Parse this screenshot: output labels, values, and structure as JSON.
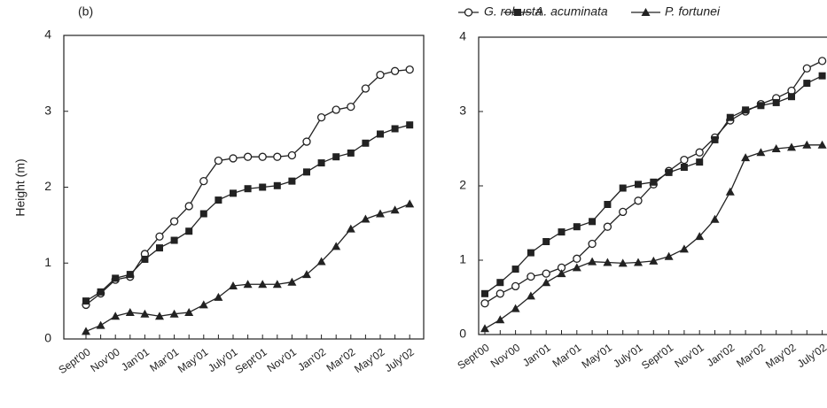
{
  "chart_data": [
    {
      "type": "line",
      "panel_label": "(b)",
      "ylabel": "Height (m)",
      "categories": [
        "Sept'00",
        null,
        "Nov'00",
        null,
        "Jan'01",
        null,
        "Mar'01",
        null,
        "May'01",
        null,
        "July'01",
        null,
        "Sept'01",
        null,
        "Nov'01",
        null,
        "Jan'02",
        null,
        "Mar'02",
        null,
        "May'02",
        null,
        "July'02"
      ],
      "ylim": [
        0,
        4
      ],
      "yticks": [
        0,
        1,
        2,
        3,
        4
      ],
      "series": [
        {
          "name": "G. robusta",
          "color": "#222222",
          "marker": "circle-open",
          "values": [
            0.45,
            0.6,
            0.78,
            0.82,
            1.12,
            1.35,
            1.55,
            1.75,
            2.08,
            2.35,
            2.38,
            2.4,
            2.4,
            2.4,
            2.42,
            2.6,
            2.92,
            3.02,
            3.06,
            3.3,
            3.48,
            3.53,
            3.55
          ]
        },
        {
          "name": "A. acuminata",
          "color": "#222222",
          "marker": "square",
          "values": [
            0.5,
            0.62,
            0.8,
            0.85,
            1.05,
            1.2,
            1.3,
            1.42,
            1.65,
            1.83,
            1.92,
            1.98,
            2.0,
            2.02,
            2.08,
            2.2,
            2.32,
            2.4,
            2.45,
            2.58,
            2.7,
            2.77,
            2.82
          ]
        },
        {
          "name": "P. fortunei",
          "color": "#222222",
          "marker": "triangle",
          "values": [
            0.1,
            0.18,
            0.3,
            0.35,
            0.33,
            0.3,
            0.33,
            0.35,
            0.45,
            0.55,
            0.7,
            0.72,
            0.72,
            0.72,
            0.75,
            0.85,
            1.02,
            1.22,
            1.45,
            1.58,
            1.65,
            1.7,
            1.78
          ]
        }
      ]
    },
    {
      "type": "line",
      "categories": [
        "Sept'00",
        null,
        "Nov'00",
        null,
        "Jan'01",
        null,
        "Mar'01",
        null,
        "May'01",
        null,
        "July'01",
        null,
        "Sept'01",
        null,
        "Nov'01",
        null,
        "Jan'02",
        null,
        "Mar'02",
        null,
        "May'02",
        null,
        "July'02"
      ],
      "ylim": [
        0,
        4
      ],
      "yticks": [
        0,
        1,
        2,
        3,
        4
      ],
      "series": [
        {
          "name": "G. robusta",
          "color": "#222222",
          "marker": "circle-open",
          "values": [
            0.42,
            0.55,
            0.65,
            0.78,
            0.82,
            0.9,
            1.02,
            1.22,
            1.45,
            1.65,
            1.8,
            2.02,
            2.2,
            2.35,
            2.45,
            2.65,
            2.88,
            3.0,
            3.1,
            3.18,
            3.28,
            3.58,
            3.68
          ]
        },
        {
          "name": "A. acuminata",
          "color": "#222222",
          "marker": "square",
          "values": [
            0.55,
            0.7,
            0.88,
            1.1,
            1.25,
            1.38,
            1.45,
            1.52,
            1.75,
            1.97,
            2.02,
            2.05,
            2.18,
            2.25,
            2.32,
            2.62,
            2.92,
            3.02,
            3.08,
            3.12,
            3.2,
            3.38,
            3.48
          ]
        },
        {
          "name": "P. fortunei",
          "color": "#222222",
          "marker": "triangle",
          "values": [
            0.08,
            0.2,
            0.35,
            0.52,
            0.7,
            0.82,
            0.9,
            0.98,
            0.97,
            0.96,
            0.97,
            0.99,
            1.05,
            1.15,
            1.32,
            1.55,
            1.92,
            2.38,
            2.45,
            2.5,
            2.52,
            2.55,
            2.55
          ]
        }
      ]
    }
  ]
}
